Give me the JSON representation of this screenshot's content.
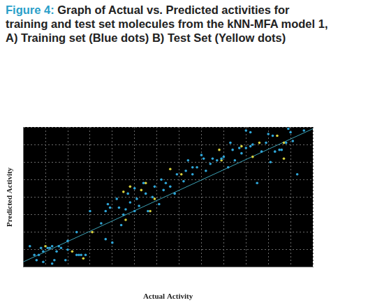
{
  "chart_data": {
    "type": "scatter",
    "title": "Figure 4: Graph of Actual vs. Predicted activities for training and test set molecules from the kNN-MFA model 1, A) Training set (Blue dots) B) Test Set (Yellow dots)",
    "x_label": "Actual Activity",
    "y_label": "Predicted Activity",
    "xlim": [
      0,
      13
    ],
    "ylim": [
      0,
      8
    ],
    "xticks": [
      0,
      1,
      2,
      3,
      4,
      5,
      6,
      7,
      8,
      9,
      10,
      11,
      12,
      13
    ],
    "yticks": [
      0,
      1,
      2,
      3,
      4,
      5,
      6,
      7,
      8
    ],
    "grid": true,
    "tick_labels": false,
    "series": [
      {
        "color": "#2fa6d8",
        "marker": "circle",
        "x": [
          0.3,
          0.5,
          0.7,
          0.8,
          0.9,
          1.1,
          1.2,
          1.3,
          1.4,
          1.5,
          1.6,
          1.7,
          1.9,
          2.0,
          2.4,
          2.5,
          2.6,
          2.8,
          0.6,
          0.9,
          1.3,
          2.0,
          2.4,
          3.0,
          3.7,
          3.8,
          3.9,
          4.2,
          4.3,
          4.5,
          4.6,
          4.7,
          4.8,
          5.0,
          5.0,
          5.1,
          5.2,
          5.4,
          5.5,
          5.6,
          5.8,
          5.9,
          6.1,
          6.2,
          6.3,
          6.4,
          6.6,
          6.8,
          6.9,
          7.2,
          7.3,
          7.4,
          7.6,
          7.6,
          7.8,
          8.0,
          8.1,
          8.2,
          8.4,
          8.5,
          8.7,
          8.9,
          9.0,
          9.2,
          9.3,
          9.4,
          9.5,
          9.7,
          9.8,
          10.0,
          10.2,
          10.3,
          10.5,
          10.7,
          10.9,
          11.1,
          11.3,
          11.5,
          11.6,
          11.8,
          12.0,
          12.1,
          12.3,
          11.0,
          11.2,
          10.0,
          10.2,
          11.9,
          12.6,
          3.7,
          4.0,
          3.5,
          4.4
        ],
        "values": [
          1.2,
          0.7,
          0.7,
          1.1,
          0.9,
          1.1,
          1.1,
          1.2,
          0.4,
          0.9,
          1.2,
          1.1,
          0.4,
          1.0,
          0.7,
          0.7,
          0.7,
          0.7,
          0.4,
          0.3,
          0.2,
          1.5,
          2.0,
          3.2,
          3.2,
          3.6,
          3.4,
          3.9,
          3.4,
          3.0,
          3.3,
          4.2,
          3.7,
          3.2,
          4.5,
          3.9,
          3.5,
          4.8,
          4.2,
          3.2,
          4.0,
          4.6,
          3.6,
          5.0,
          4.4,
          4.8,
          4.6,
          4.2,
          5.3,
          4.9,
          5.5,
          6.1,
          5.7,
          5.3,
          5.7,
          6.4,
          6.2,
          5.5,
          5.9,
          6.2,
          6.1,
          6.2,
          6.3,
          5.7,
          7.1,
          6.7,
          6.1,
          6.8,
          6.5,
          6.8,
          6.9,
          7.0,
          4.8,
          6.6,
          7.1,
          6.0,
          6.6,
          6.7,
          6.7,
          7.1,
          7.7,
          7.2,
          5.3,
          7.6,
          7.5,
          7.8,
          7.7,
          7.9,
          7.8,
          1.6,
          1.4,
          2.5,
          2.4
        ]
      },
      {
        "color": "#d6cf3c",
        "marker": "circle",
        "x": [
          1.0,
          2.2,
          2.7,
          3.1,
          4.5,
          4.6,
          4.8,
          5.3,
          5.5,
          5.7,
          5.9,
          6.6,
          7.1,
          8.8,
          8.9,
          9.8,
          10.3,
          10.6,
          11.4,
          11.7,
          11.7
        ],
        "values": [
          1.2,
          0.9,
          0.5,
          2.0,
          4.3,
          2.7,
          4.6,
          4.4,
          4.8,
          3.2,
          3.9,
          5.6,
          5.3,
          6.7,
          6.1,
          6.9,
          6.3,
          7.1,
          7.5,
          6.2,
          7.1
        ]
      },
      {
        "type": "line",
        "color": "#3b9fb3",
        "line_style": "solid",
        "x": [
          0,
          13
        ],
        "values": [
          0.3,
          7.9
        ]
      }
    ]
  }
}
